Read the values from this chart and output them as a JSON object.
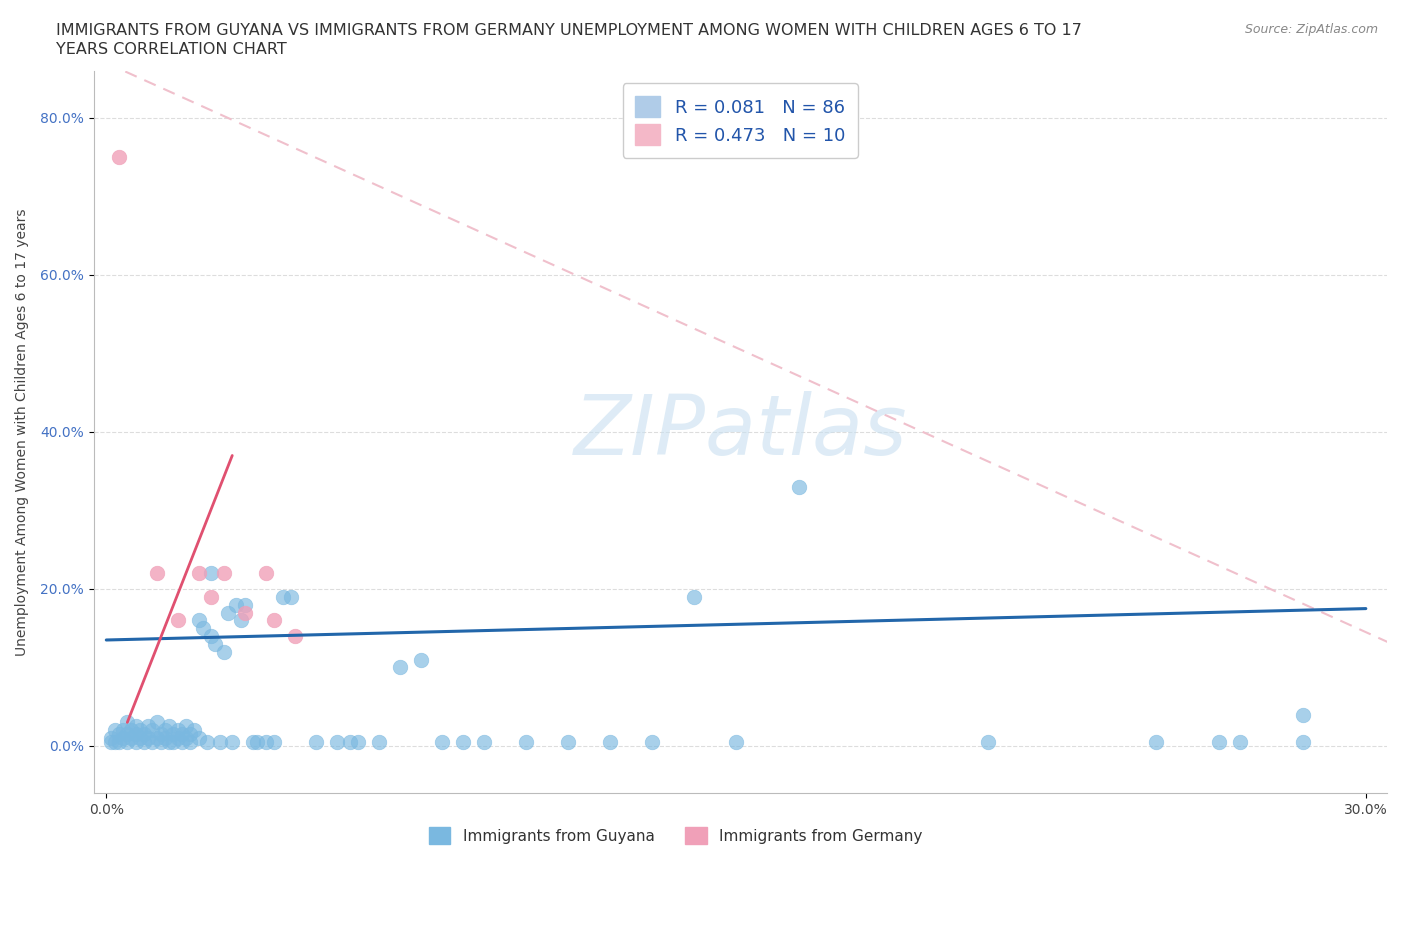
{
  "title_line1": "IMMIGRANTS FROM GUYANA VS IMMIGRANTS FROM GERMANY UNEMPLOYMENT AMONG WOMEN WITH CHILDREN AGES 6 TO 17",
  "title_line2": "YEARS CORRELATION CHART",
  "source": "Source: ZipAtlas.com",
  "ylabel": "Unemployment Among Women with Children Ages 6 to 17 years",
  "xlim": [
    -0.003,
    0.305
  ],
  "ylim": [
    -0.06,
    0.86
  ],
  "yticks": [
    0.0,
    0.2,
    0.4,
    0.6,
    0.8
  ],
  "ytick_labels": [
    "0.0%",
    "20.0%",
    "40.0%",
    "60.0%",
    "80.0%"
  ],
  "xtick_labels": [
    "0.0%",
    "30.0%"
  ],
  "guyana_color": "#7ab8e0",
  "germany_color": "#f0a0b8",
  "guyana_trend_color": "#2266aa",
  "germany_trend_color": "#e05070",
  "germany_dashed_color": "#f0c0cc",
  "watermark_color": "#c8dff0",
  "background_color": "#ffffff",
  "grid_color": "#dddddd",
  "legend_box_color": "#a8c8e8",
  "legend_box2_color": "#f4b8c8",
  "legend_text_color": "#2255aa",
  "guyana_points": [
    [
      0.001,
      0.005
    ],
    [
      0.001,
      0.01
    ],
    [
      0.002,
      0.02
    ],
    [
      0.002,
      0.005
    ],
    [
      0.003,
      0.015
    ],
    [
      0.003,
      0.005
    ],
    [
      0.004,
      0.01
    ],
    [
      0.004,
      0.02
    ],
    [
      0.005,
      0.005
    ],
    [
      0.005,
      0.015
    ],
    [
      0.005,
      0.03
    ],
    [
      0.006,
      0.01
    ],
    [
      0.006,
      0.02
    ],
    [
      0.007,
      0.005
    ],
    [
      0.007,
      0.015
    ],
    [
      0.007,
      0.025
    ],
    [
      0.008,
      0.01
    ],
    [
      0.008,
      0.02
    ],
    [
      0.009,
      0.005
    ],
    [
      0.009,
      0.015
    ],
    [
      0.01,
      0.01
    ],
    [
      0.01,
      0.025
    ],
    [
      0.011,
      0.005
    ],
    [
      0.011,
      0.02
    ],
    [
      0.012,
      0.01
    ],
    [
      0.012,
      0.03
    ],
    [
      0.013,
      0.015
    ],
    [
      0.013,
      0.005
    ],
    [
      0.014,
      0.02
    ],
    [
      0.014,
      0.01
    ],
    [
      0.015,
      0.005
    ],
    [
      0.015,
      0.025
    ],
    [
      0.016,
      0.015
    ],
    [
      0.016,
      0.005
    ],
    [
      0.017,
      0.01
    ],
    [
      0.017,
      0.02
    ],
    [
      0.018,
      0.005
    ],
    [
      0.018,
      0.015
    ],
    [
      0.019,
      0.01
    ],
    [
      0.019,
      0.025
    ],
    [
      0.02,
      0.015
    ],
    [
      0.02,
      0.005
    ],
    [
      0.021,
      0.02
    ],
    [
      0.022,
      0.01
    ],
    [
      0.022,
      0.16
    ],
    [
      0.023,
      0.15
    ],
    [
      0.024,
      0.005
    ],
    [
      0.025,
      0.14
    ],
    [
      0.025,
      0.22
    ],
    [
      0.026,
      0.13
    ],
    [
      0.027,
      0.005
    ],
    [
      0.028,
      0.12
    ],
    [
      0.029,
      0.17
    ],
    [
      0.03,
      0.005
    ],
    [
      0.031,
      0.18
    ],
    [
      0.032,
      0.16
    ],
    [
      0.033,
      0.18
    ],
    [
      0.035,
      0.005
    ],
    [
      0.036,
      0.005
    ],
    [
      0.038,
      0.005
    ],
    [
      0.04,
      0.005
    ],
    [
      0.042,
      0.19
    ],
    [
      0.044,
      0.19
    ],
    [
      0.05,
      0.005
    ],
    [
      0.055,
      0.005
    ],
    [
      0.058,
      0.005
    ],
    [
      0.06,
      0.005
    ],
    [
      0.065,
      0.005
    ],
    [
      0.07,
      0.1
    ],
    [
      0.075,
      0.11
    ],
    [
      0.08,
      0.005
    ],
    [
      0.085,
      0.005
    ],
    [
      0.09,
      0.005
    ],
    [
      0.1,
      0.005
    ],
    [
      0.11,
      0.005
    ],
    [
      0.12,
      0.005
    ],
    [
      0.13,
      0.005
    ],
    [
      0.14,
      0.19
    ],
    [
      0.15,
      0.005
    ],
    [
      0.165,
      0.33
    ],
    [
      0.21,
      0.005
    ],
    [
      0.25,
      0.005
    ],
    [
      0.265,
      0.005
    ],
    [
      0.285,
      0.005
    ],
    [
      0.27,
      0.005
    ],
    [
      0.285,
      0.04
    ]
  ],
  "germany_points": [
    [
      0.003,
      0.75
    ],
    [
      0.012,
      0.22
    ],
    [
      0.017,
      0.16
    ],
    [
      0.022,
      0.22
    ],
    [
      0.025,
      0.19
    ],
    [
      0.028,
      0.22
    ],
    [
      0.033,
      0.17
    ],
    [
      0.038,
      0.22
    ],
    [
      0.04,
      0.16
    ],
    [
      0.045,
      0.14
    ]
  ],
  "guyana_trend": [
    0.0,
    0.135,
    0.3,
    0.175
  ],
  "germany_solid_trend": [
    0.005,
    0.03,
    0.03,
    0.37
  ],
  "germany_dashed_trend": [
    0.0,
    0.87,
    0.36,
    0.0
  ]
}
